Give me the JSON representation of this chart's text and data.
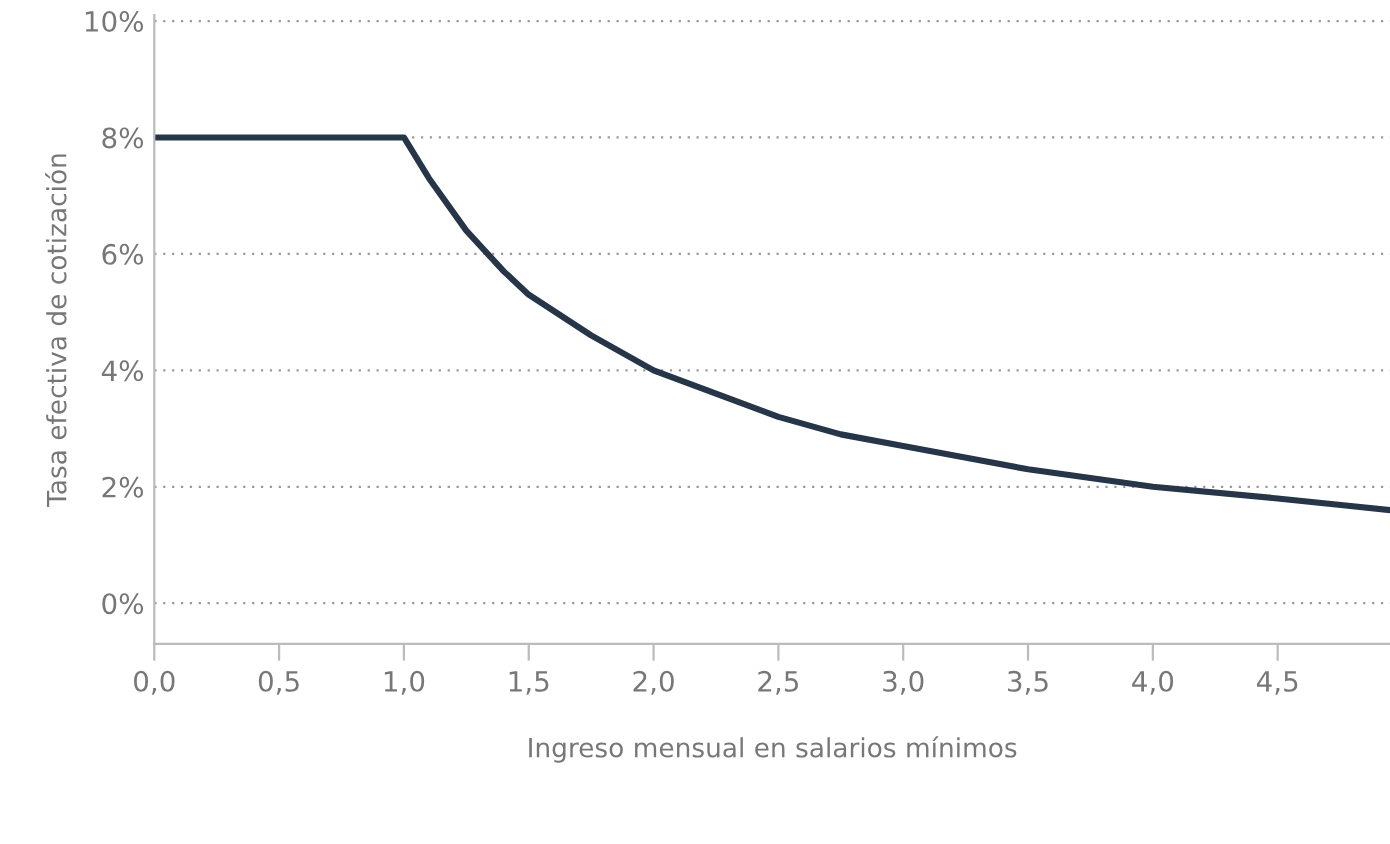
{
  "chart_data": {
    "type": "line",
    "xlabel": "Ingreso mensual en salarios mínimos",
    "ylabel": "Tasa efectiva de cotización",
    "x": [
      0,
      0.5,
      1.0,
      1.1,
      1.25,
      1.4,
      1.5,
      1.75,
      2.0,
      2.25,
      2.5,
      2.75,
      3.0,
      3.5,
      4.0,
      4.5,
      4.95
    ],
    "series": [
      {
        "color": "#263548",
        "values": [
          8,
          8,
          8,
          7.3,
          6.4,
          5.7,
          5.3,
          4.6,
          4.0,
          3.6,
          3.2,
          2.9,
          2.7,
          2.3,
          2.0,
          1.8,
          1.6
        ]
      }
    ],
    "xlim": [
      0,
      4.95
    ],
    "xticks": [
      {
        "value": 0,
        "label": "0,0"
      },
      {
        "value": 0.5,
        "label": "0,5"
      },
      {
        "value": 1.0,
        "label": "1,0"
      },
      {
        "value": 1.5,
        "label": "1,5"
      },
      {
        "value": 2.0,
        "label": "2,0"
      },
      {
        "value": 2.5,
        "label": "2,5"
      },
      {
        "value": 3.0,
        "label": "3,0"
      },
      {
        "value": 3.5,
        "label": "3,5"
      },
      {
        "value": 4.0,
        "label": "4,0"
      },
      {
        "value": 4.5,
        "label": "4,5"
      }
    ],
    "ylim": [
      -0.7,
      10.1
    ],
    "yticks": [
      {
        "value": 0,
        "label": "0%"
      },
      {
        "value": 2,
        "label": "2%"
      },
      {
        "value": 4,
        "label": "4%"
      },
      {
        "value": 6,
        "label": "6%"
      },
      {
        "value": 8,
        "label": "8%"
      },
      {
        "value": 10,
        "label": "10%"
      }
    ],
    "grid": "y",
    "line_style": "solid",
    "marker": "none"
  }
}
